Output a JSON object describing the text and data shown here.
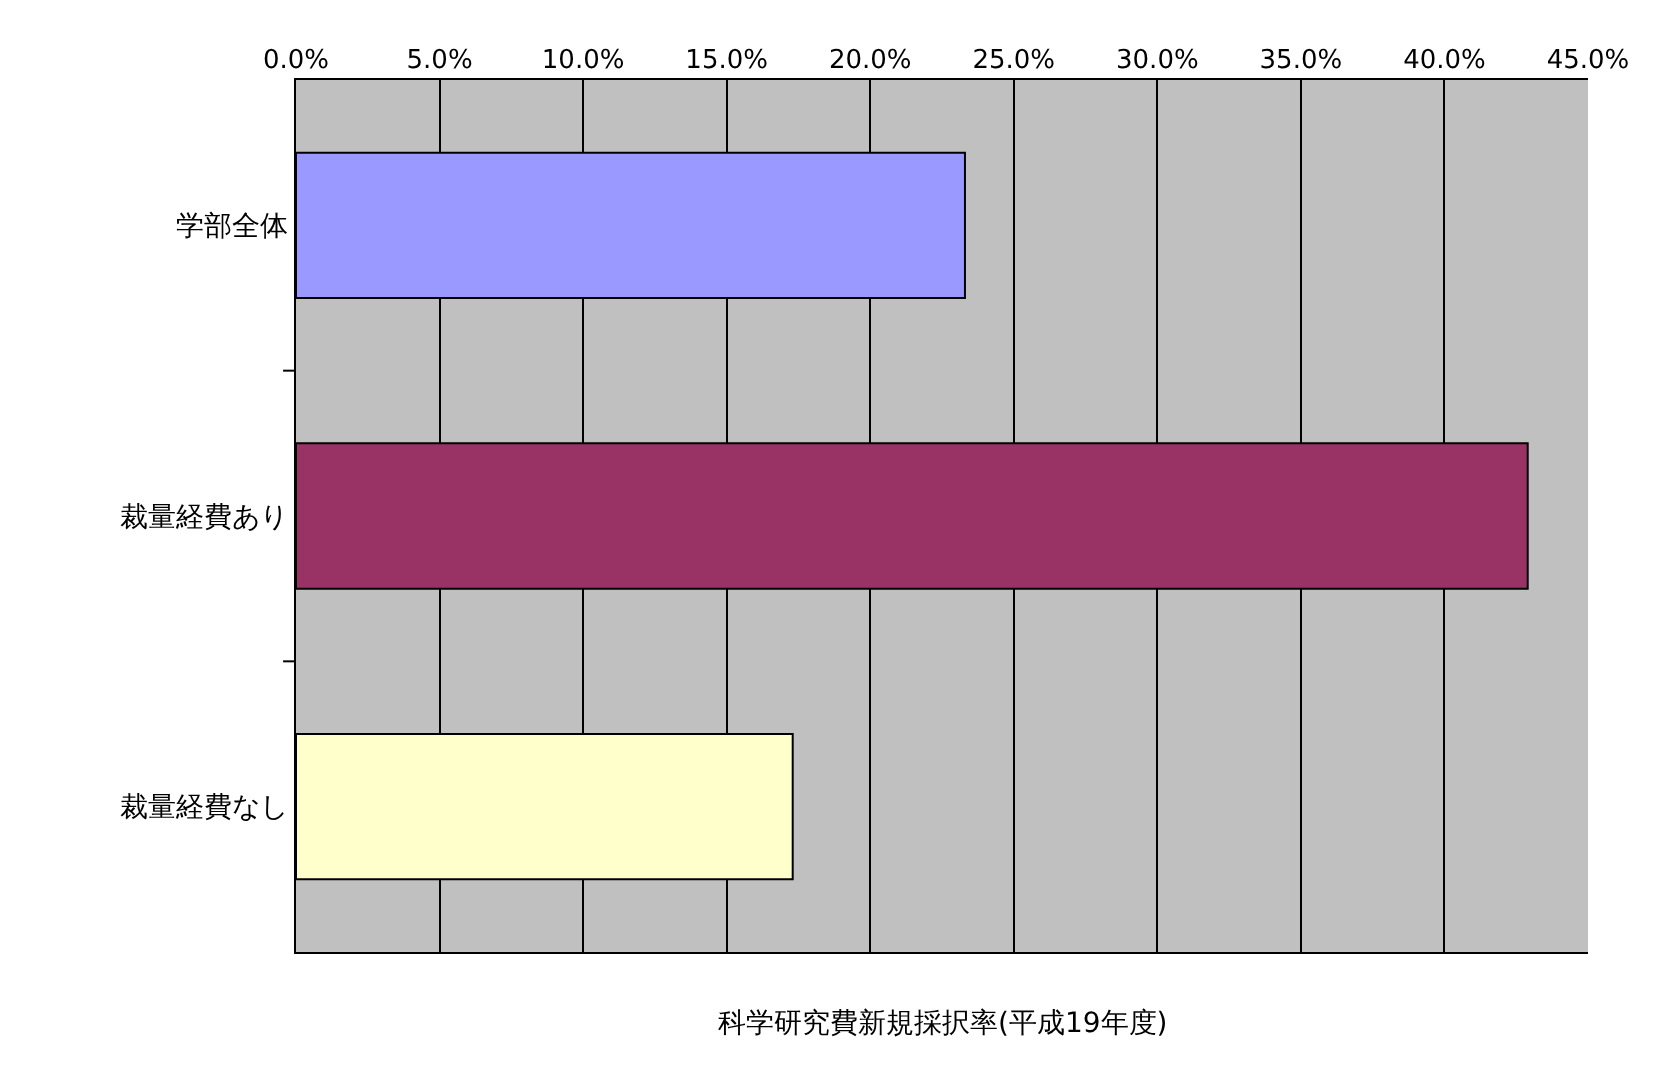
{
  "chart_data": {
    "type": "bar",
    "orientation": "horizontal",
    "xlabel": "科学研究費新規採択率(平成19年度)",
    "categories": [
      "学部全体",
      "裁量経費あり",
      "裁量経費なし"
    ],
    "values": [
      23.3,
      42.9,
      17.3
    ],
    "colors": [
      "#9999ff",
      "#993366",
      "#ffffcc"
    ],
    "xlim": [
      0,
      45
    ],
    "xticks": [
      {
        "value": 0,
        "label": "0.0%"
      },
      {
        "value": 5,
        "label": "5.0%"
      },
      {
        "value": 10,
        "label": "10.0%"
      },
      {
        "value": 15,
        "label": "15.0%"
      },
      {
        "value": 20,
        "label": "20.0%"
      },
      {
        "value": 25,
        "label": "25.0%"
      },
      {
        "value": 30,
        "label": "30.0%"
      },
      {
        "value": 35,
        "label": "35.0%"
      },
      {
        "value": 40,
        "label": "40.0%"
      },
      {
        "value": 45,
        "label": "45.0%"
      }
    ],
    "grid": "x",
    "legend": false
  }
}
